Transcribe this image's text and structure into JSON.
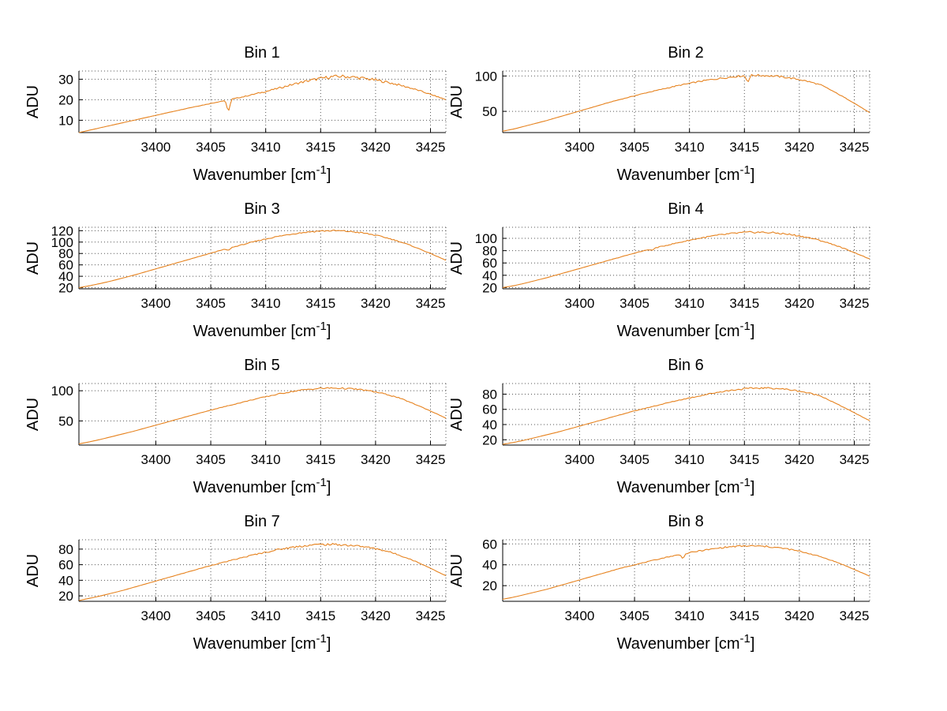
{
  "shared": {
    "ylabel": "ADU",
    "xlabel_main": "Wavenumber [cm",
    "xlabel_sup": "-1",
    "xlabel_end": "]",
    "xlim": [
      3393,
      3426.4
    ],
    "xticks": [
      3400,
      3405,
      3410,
      3415,
      3420,
      3425
    ],
    "line_color": "#E6821E",
    "grid_color": "#555555",
    "axis_color": "#000000",
    "background": "#ffffff",
    "grid_on": true,
    "layout": "4 rows x 2 columns"
  },
  "chart_data": [
    {
      "type": "line",
      "title": "Bin 1",
      "x_start": 3393,
      "x_step": 1,
      "y": [
        4,
        5.2,
        6.4,
        7.6,
        8.8,
        10,
        11.2,
        12.4,
        13.6,
        14.8,
        16,
        17.1,
        18.2,
        19.3,
        20.4,
        21.5,
        22.8,
        24,
        25.4,
        26.8,
        28.2,
        29.4,
        30.4,
        31.2,
        31.4,
        31,
        30.4,
        29.6,
        28.6,
        27.4,
        26,
        24.4,
        22.6,
        20.8,
        19
      ],
      "ylim": [
        4,
        34
      ],
      "yticks": [
        10,
        20,
        30
      ],
      "noise": 0.8,
      "dips": [
        {
          "x": 3406.6,
          "depth": 6
        }
      ]
    },
    {
      "type": "line",
      "title": "Bin 2",
      "x_start": 3393,
      "x_step": 1,
      "y": [
        22,
        25,
        29,
        33,
        37,
        41.5,
        46,
        50.5,
        55,
        59.5,
        64,
        68,
        72,
        76,
        79.5,
        83,
        86.5,
        89.5,
        92.5,
        95,
        97,
        99,
        100.5,
        101,
        100.5,
        99.5,
        97.5,
        95,
        91.5,
        87,
        79,
        70.5,
        61.5,
        52,
        42.5
      ],
      "ylim": [
        20,
        107
      ],
      "yticks": [
        50,
        100
      ],
      "noise": 1.4,
      "dips": [
        {
          "x": 3415.3,
          "depth": 9
        }
      ]
    },
    {
      "type": "line",
      "title": "Bin 3",
      "x_start": 3393,
      "x_step": 1,
      "y": [
        20,
        23.5,
        27.5,
        32,
        37,
        42,
        47.5,
        53,
        58.5,
        64,
        69.5,
        75,
        80.5,
        86,
        91,
        96,
        101,
        105.5,
        109.5,
        113,
        116,
        118,
        119.5,
        120,
        119.5,
        118,
        115.5,
        112,
        107.5,
        102,
        95.5,
        88,
        80,
        71.5,
        63
      ],
      "ylim": [
        18,
        126
      ],
      "yticks": [
        20,
        40,
        60,
        80,
        100,
        120
      ],
      "noise": 1.4,
      "dips": [
        {
          "x": 3406.6,
          "depth": 4
        }
      ]
    },
    {
      "type": "line",
      "title": "Bin 4",
      "x_start": 3393,
      "x_step": 1,
      "y": [
        20,
        23,
        27,
        31.5,
        36,
        41,
        46,
        51,
        56,
        61,
        66,
        71,
        76,
        80.5,
        85,
        89,
        93,
        97,
        100.5,
        103.5,
        106,
        108,
        109.5,
        110,
        109.5,
        108.5,
        106.5,
        104,
        100.5,
        96,
        90.5,
        84,
        77,
        69.5,
        62
      ],
      "ylim": [
        18,
        118
      ],
      "yticks": [
        20,
        40,
        60,
        80,
        100
      ],
      "noise": 1.6,
      "dips": [
        {
          "x": 3406.6,
          "depth": 3
        }
      ]
    },
    {
      "type": "line",
      "title": "Bin 5",
      "x_start": 3393,
      "x_step": 1,
      "y": [
        12,
        15.5,
        19.5,
        24,
        28.5,
        33,
        38,
        43,
        48,
        53,
        58,
        63,
        68,
        72.5,
        77,
        81.5,
        86,
        90,
        94,
        97.5,
        100.5,
        102.5,
        104,
        104.5,
        104,
        103,
        101,
        98,
        94,
        89,
        82,
        74.5,
        66.5,
        58,
        49.5
      ],
      "ylim": [
        10,
        112
      ],
      "yticks": [
        50,
        100
      ],
      "noise": 1.3,
      "dips": []
    },
    {
      "type": "line",
      "title": "Bin 6",
      "x_start": 3393,
      "x_step": 1,
      "y": [
        14,
        16.5,
        19.5,
        23,
        26.5,
        30,
        34,
        38,
        42,
        46,
        50,
        54,
        58,
        61.5,
        65,
        68.5,
        72,
        75,
        78,
        81,
        83.5,
        85.5,
        87,
        88,
        88,
        87.5,
        86,
        84,
        81,
        77.5,
        70,
        63,
        55.5,
        48,
        41
      ],
      "ylim": [
        13,
        94
      ],
      "yticks": [
        20,
        40,
        60,
        80
      ],
      "noise": 1.1,
      "dips": []
    },
    {
      "type": "line",
      "title": "Bin 7",
      "x_start": 3393,
      "x_step": 1,
      "y": [
        14,
        17,
        20,
        23.5,
        27,
        31,
        35,
        39,
        43,
        47,
        51,
        55,
        59,
        62.5,
        66,
        69.5,
        73,
        76,
        79,
        81.5,
        83.5,
        85,
        86,
        86,
        85.5,
        84.5,
        83,
        80.5,
        77.5,
        73,
        68,
        62,
        55.5,
        48.5,
        42
      ],
      "ylim": [
        13,
        92
      ],
      "yticks": [
        20,
        40,
        60,
        80
      ],
      "noise": 1.4,
      "dips": []
    },
    {
      "type": "line",
      "title": "Bin 8",
      "x_start": 3393,
      "x_step": 1,
      "y": [
        7,
        9,
        11.5,
        14,
        16.5,
        19.5,
        22.5,
        25.5,
        28.5,
        31.5,
        34.5,
        37.5,
        40,
        42.5,
        45,
        47.5,
        49.5,
        51.5,
        53.5,
        55,
        56.5,
        57.5,
        58,
        58,
        57.5,
        56.5,
        55,
        53,
        50.5,
        47.5,
        44,
        40,
        35.5,
        31,
        26
      ],
      "ylim": [
        5,
        64
      ],
      "yticks": [
        20,
        40,
        60
      ],
      "noise": 0.8,
      "dips": [
        {
          "x": 3409.4,
          "depth": 4
        }
      ]
    }
  ]
}
